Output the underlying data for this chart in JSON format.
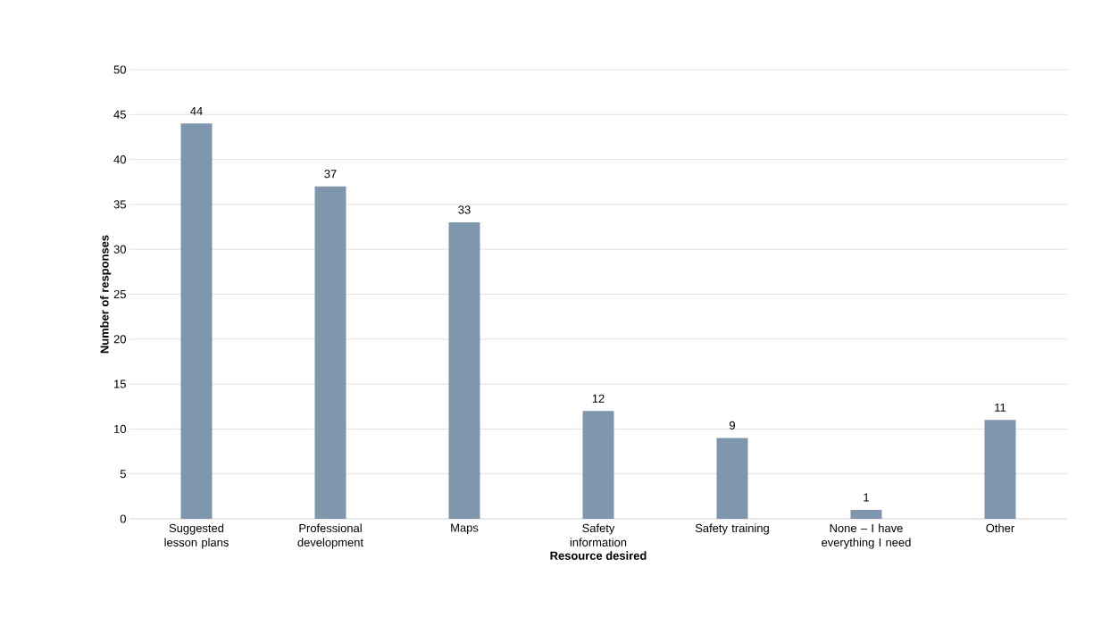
{
  "chart_data": {
    "type": "bar",
    "categories": [
      "Suggested lesson plans",
      "Professional development",
      "Maps",
      "Safety information",
      "Safety training",
      "None – I have everything I need",
      "Other"
    ],
    "values": [
      44,
      37,
      33,
      12,
      9,
      1,
      11
    ],
    "color": "#7f97ad",
    "xlabel": "Resource desired",
    "ylabel": "Number of responses",
    "ylim": [
      0,
      50
    ],
    "yticks": [
      0,
      5,
      10,
      15,
      20,
      25,
      30,
      35,
      40,
      45,
      50
    ],
    "grid": "y",
    "data_labels": true
  }
}
